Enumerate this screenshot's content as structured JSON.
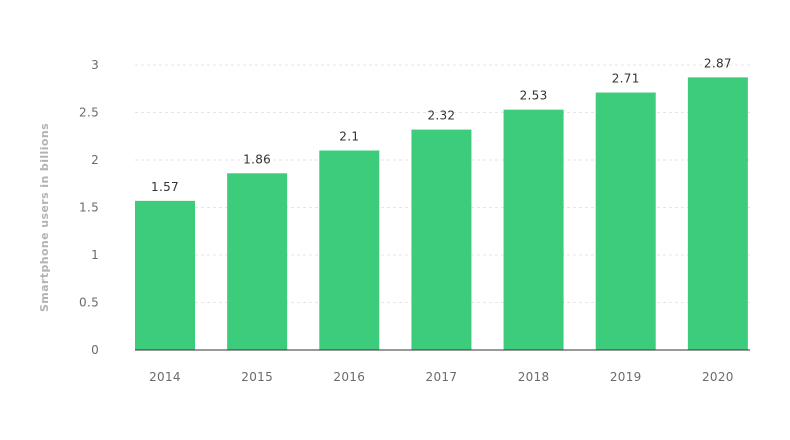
{
  "chart_data": {
    "type": "bar",
    "categories": [
      "2014",
      "2015",
      "2016",
      "2017",
      "2018",
      "2019",
      "2020"
    ],
    "values": [
      1.57,
      1.86,
      2.1,
      2.32,
      2.53,
      2.71,
      2.87
    ],
    "value_labels": [
      "1.57",
      "1.86",
      "2.1",
      "2.32",
      "2.53",
      "2.71",
      "2.87"
    ],
    "title": "",
    "xlabel": "",
    "ylabel": "Smartphone users in billions",
    "ylim": [
      0,
      3
    ],
    "yticks": [
      0,
      0.5,
      1,
      1.5,
      2,
      2.5,
      3
    ],
    "ytick_labels": [
      "0",
      "0.5",
      "1",
      "1.5",
      "2",
      "2.5",
      "3"
    ],
    "grid": true,
    "bar_color": "#3ccc7c"
  }
}
